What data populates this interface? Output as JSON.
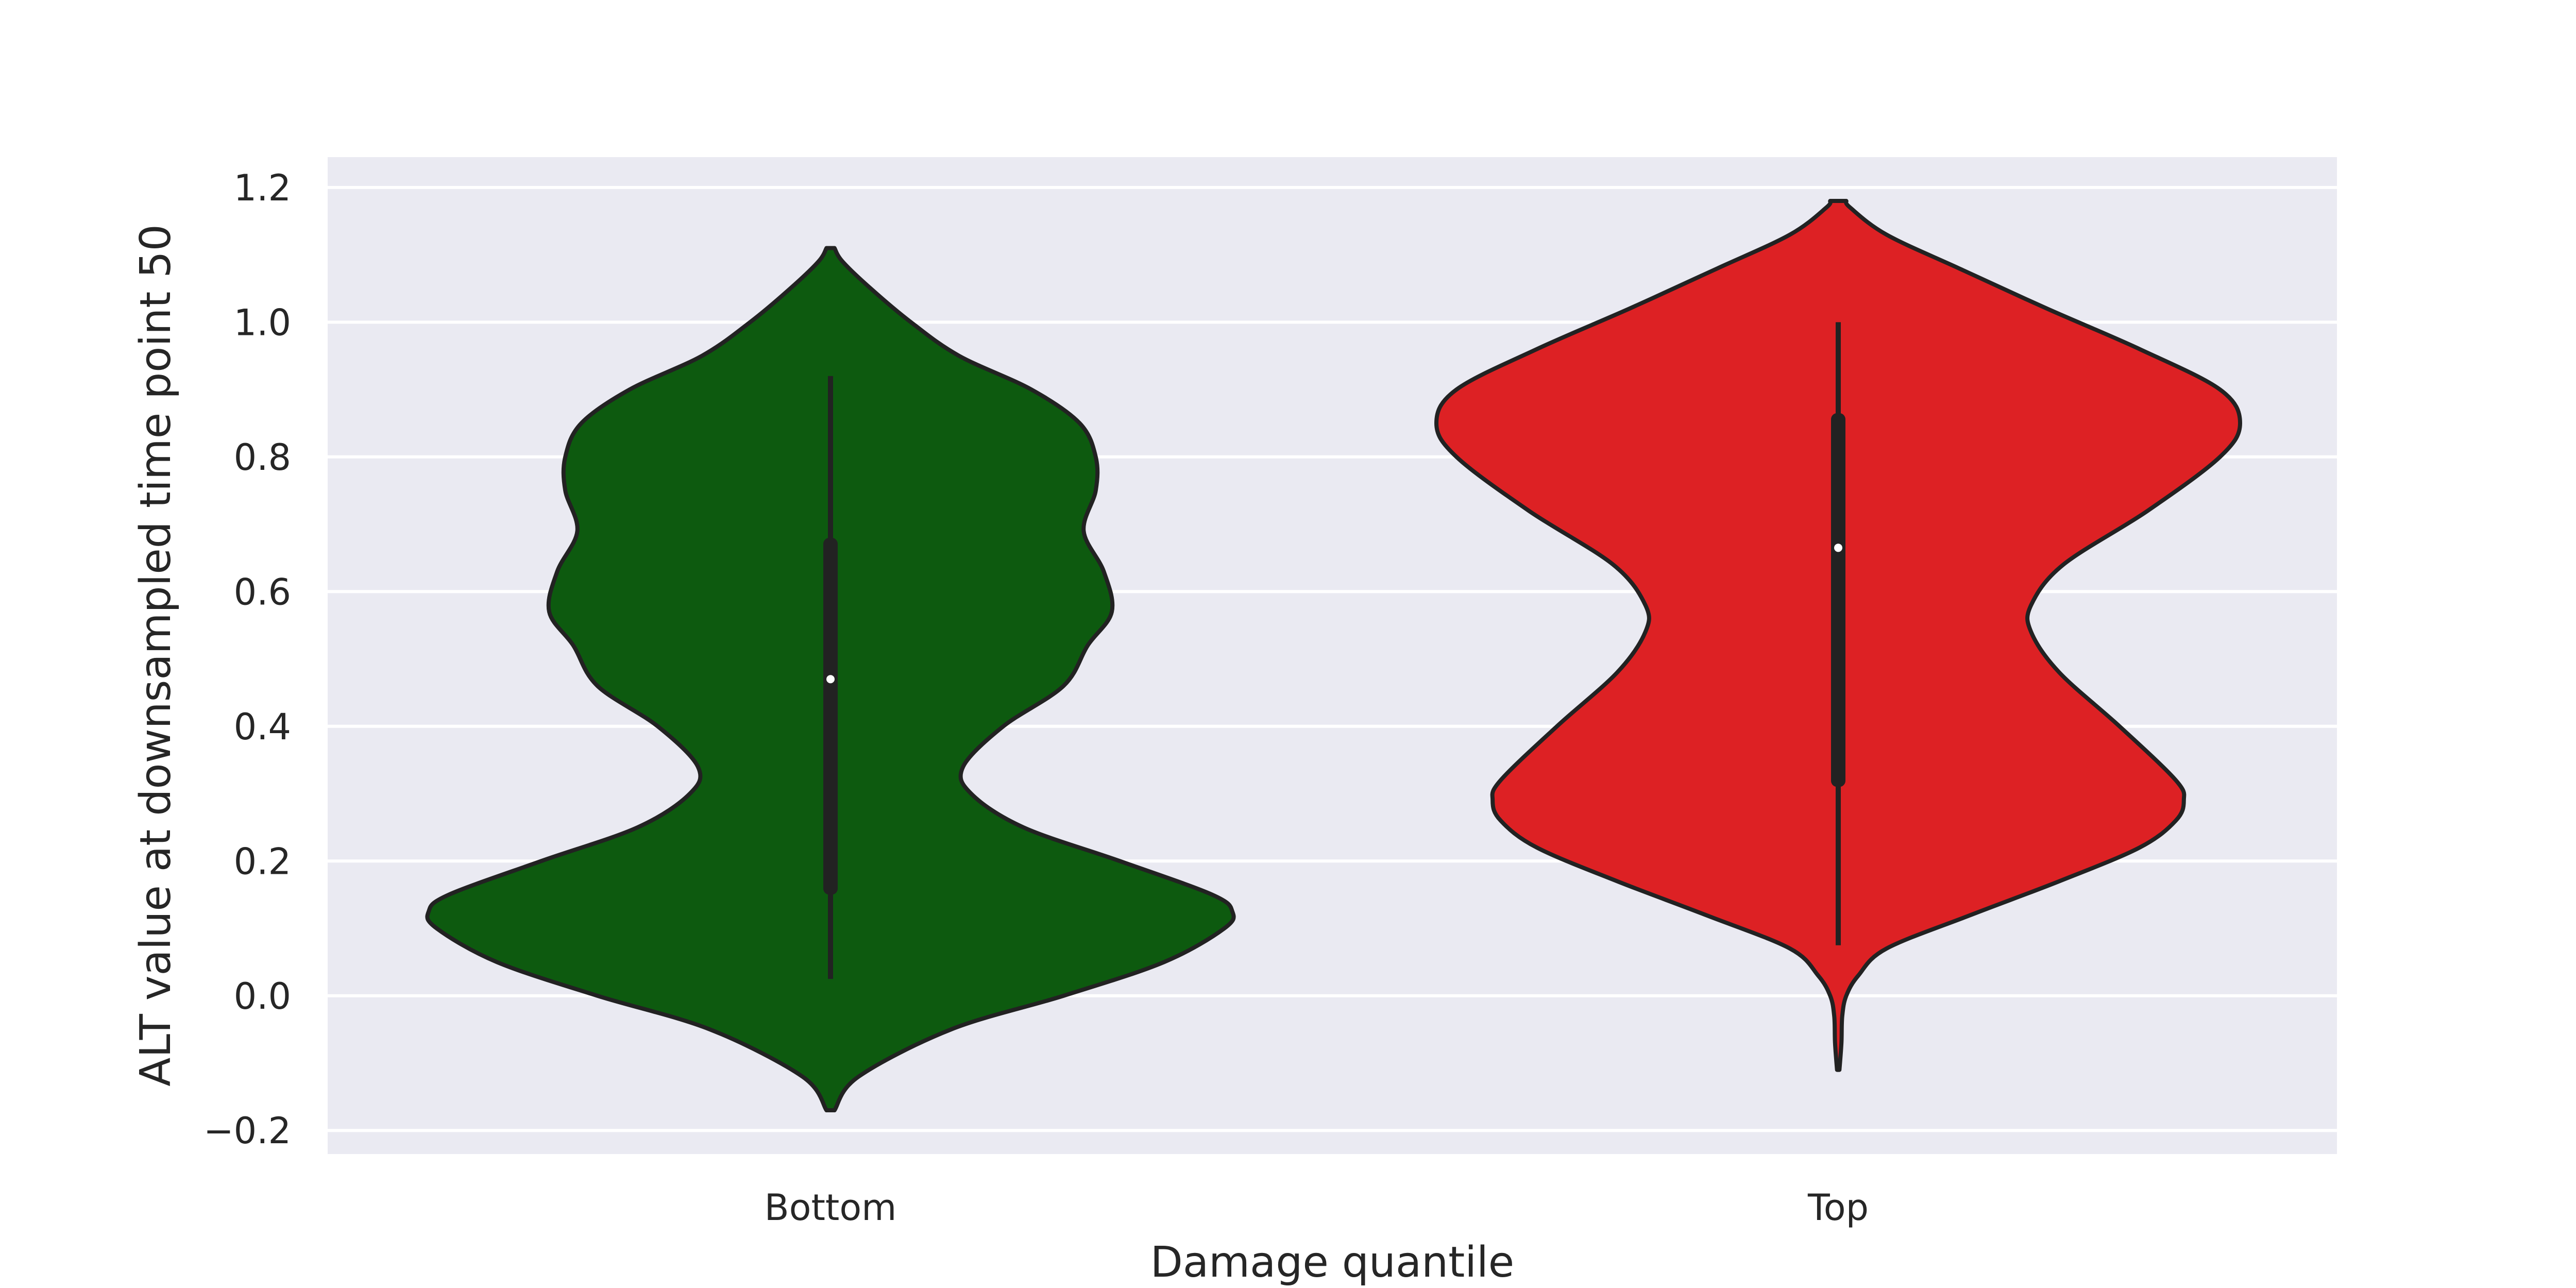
{
  "chart_data": {
    "type": "violin",
    "xlabel": "Damage quantile",
    "ylabel": "ALT value at downsampled time point 50",
    "ylim": [
      -0.235,
      1.245
    ],
    "yticks": [
      -0.2,
      0.0,
      0.2,
      0.4,
      0.6,
      0.8,
      1.0,
      1.2
    ],
    "ytick_labels": [
      "−0.2",
      "0.0",
      "0.2",
      "0.4",
      "0.6",
      "0.8",
      "1.0",
      "1.2"
    ],
    "grid": true,
    "background_color": "#EAEAF2",
    "categories": [
      "Bottom",
      "Top"
    ],
    "series": [
      {
        "category": "Bottom",
        "color": "#0D5A0F",
        "range": [
          -0.17,
          1.11
        ],
        "quartiles": [
          0.15,
          0.47,
          0.68
        ],
        "median": 0.47,
        "whisker": [
          0.025,
          0.92
        ],
        "density": [
          [
            -0.17,
            0.01
          ],
          [
            -0.12,
            0.07
          ],
          [
            -0.05,
            0.3
          ],
          [
            0.0,
            0.58
          ],
          [
            0.05,
            0.83
          ],
          [
            0.1,
            0.98
          ],
          [
            0.125,
            1.0
          ],
          [
            0.15,
            0.95
          ],
          [
            0.2,
            0.72
          ],
          [
            0.25,
            0.48
          ],
          [
            0.3,
            0.35
          ],
          [
            0.34,
            0.33
          ],
          [
            0.4,
            0.43
          ],
          [
            0.46,
            0.58
          ],
          [
            0.52,
            0.64
          ],
          [
            0.57,
            0.7
          ],
          [
            0.63,
            0.68
          ],
          [
            0.69,
            0.63
          ],
          [
            0.75,
            0.66
          ],
          [
            0.8,
            0.66
          ],
          [
            0.85,
            0.62
          ],
          [
            0.9,
            0.5
          ],
          [
            0.95,
            0.32
          ],
          [
            1.0,
            0.2
          ],
          [
            1.05,
            0.1
          ],
          [
            1.09,
            0.03
          ],
          [
            1.11,
            0.01
          ]
        ]
      },
      {
        "category": "Top",
        "color": "#DD2124",
        "range": [
          -0.11,
          1.18
        ],
        "quartiles": [
          0.31,
          0.665,
          0.865
        ],
        "median": 0.665,
        "whisker": [
          0.075,
          1.0
        ],
        "density": [
          [
            -0.11,
            0.003
          ],
          [
            -0.07,
            0.008
          ],
          [
            -0.03,
            0.01
          ],
          [
            0.0,
            0.02
          ],
          [
            0.03,
            0.05
          ],
          [
            0.07,
            0.12
          ],
          [
            0.12,
            0.33
          ],
          [
            0.17,
            0.55
          ],
          [
            0.22,
            0.75
          ],
          [
            0.26,
            0.84
          ],
          [
            0.29,
            0.86
          ],
          [
            0.32,
            0.84
          ],
          [
            0.4,
            0.7
          ],
          [
            0.48,
            0.55
          ],
          [
            0.54,
            0.48
          ],
          [
            0.58,
            0.48
          ],
          [
            0.64,
            0.56
          ],
          [
            0.72,
            0.77
          ],
          [
            0.8,
            0.95
          ],
          [
            0.85,
            1.0
          ],
          [
            0.9,
            0.95
          ],
          [
            0.96,
            0.75
          ],
          [
            1.02,
            0.52
          ],
          [
            1.08,
            0.3
          ],
          [
            1.13,
            0.12
          ],
          [
            1.17,
            0.03
          ],
          [
            1.18,
            0.02
          ]
        ]
      }
    ]
  }
}
